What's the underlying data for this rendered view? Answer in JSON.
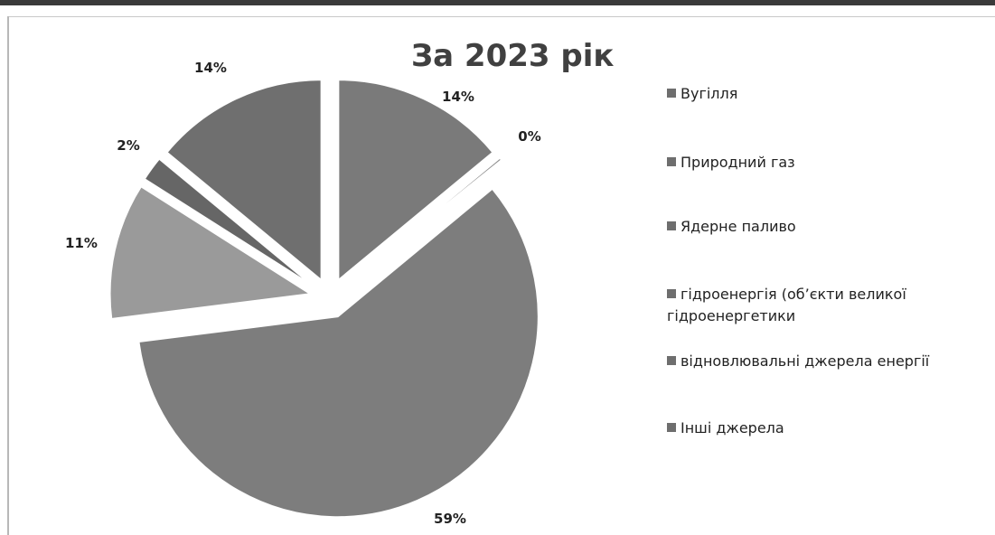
{
  "chart_data": {
    "type": "pie",
    "title": "За 2023 рік",
    "categories": [
      "Вугілля",
      "Природний газ",
      "Ядерне паливо",
      "гідроенергія (об’єкти великої гідроенергетики",
      "відновлювальні джерела енергії",
      "Інші джерела"
    ],
    "values": [
      14,
      0,
      59,
      11,
      2,
      14
    ],
    "labels": [
      "14%",
      "0%",
      "59%",
      "11%",
      "2%",
      "14%"
    ],
    "legend_position": "right",
    "colors": [
      "#7a7a7a",
      "#8a8a8a",
      "#7d7d7d",
      "#9a9a9a",
      "#666666",
      "#6f6f6f"
    ]
  }
}
